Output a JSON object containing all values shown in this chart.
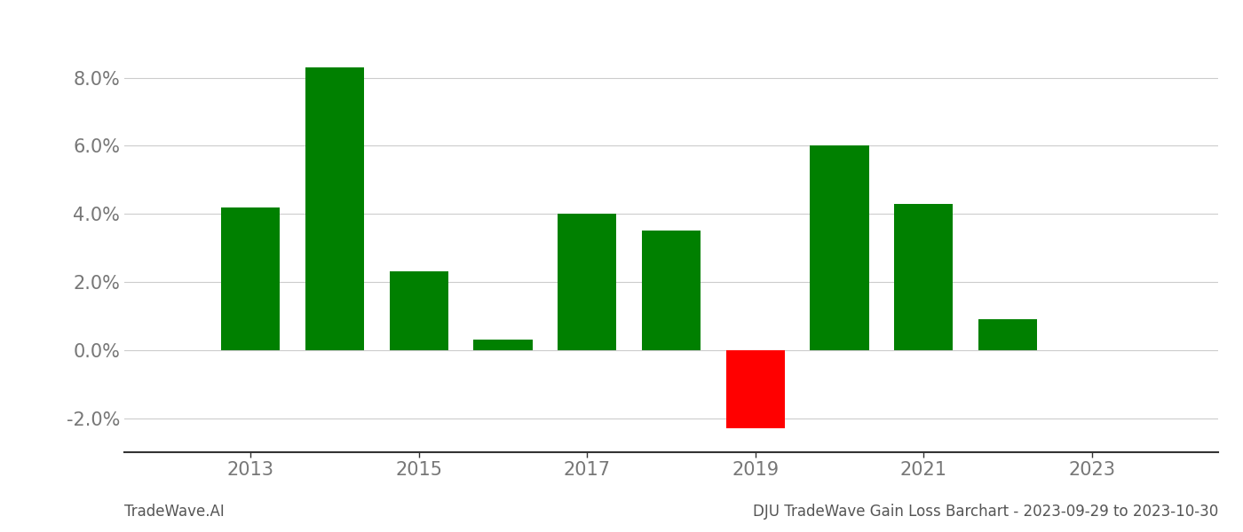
{
  "years": [
    2013,
    2014,
    2015,
    2016,
    2017,
    2018,
    2019,
    2020,
    2021,
    2022
  ],
  "values": [
    0.042,
    0.083,
    0.023,
    0.003,
    0.04,
    0.035,
    -0.023,
    0.06,
    0.043,
    0.009
  ],
  "bar_colors": [
    "#008000",
    "#008000",
    "#008000",
    "#008000",
    "#008000",
    "#008000",
    "#ff0000",
    "#008000",
    "#008000",
    "#008000"
  ],
  "title": "DJU TradeWave Gain Loss Barchart - 2023-09-29 to 2023-10-30",
  "watermark": "TradeWave.AI",
  "xlim": [
    2011.5,
    2024.5
  ],
  "ylim": [
    -0.03,
    0.095
  ],
  "yticks": [
    -0.02,
    0.0,
    0.02,
    0.04,
    0.06,
    0.08
  ],
  "xticks": [
    2013,
    2015,
    2017,
    2019,
    2021,
    2023
  ],
  "background_color": "#ffffff",
  "grid_color": "#cccccc",
  "bar_width": 0.7,
  "title_fontsize": 12,
  "watermark_fontsize": 12,
  "tick_fontsize": 15,
  "title_color": "#555555",
  "watermark_color": "#555555"
}
